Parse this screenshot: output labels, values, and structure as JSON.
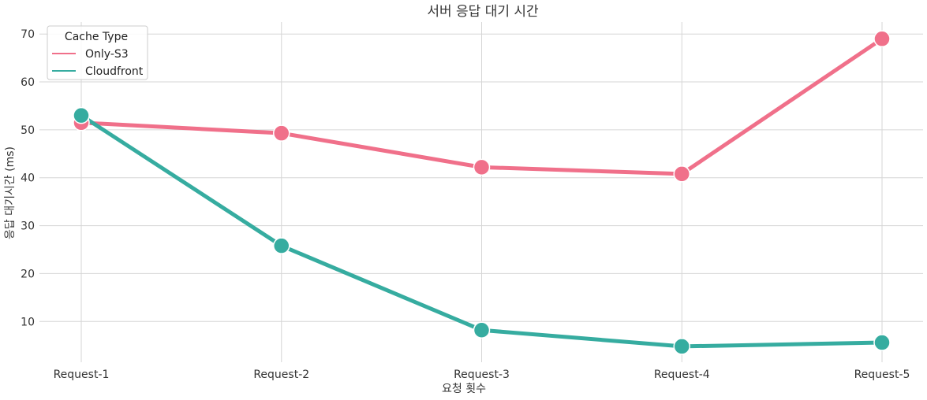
{
  "chart_data": {
    "type": "line",
    "title": "서버 응답 대기 시간",
    "xlabel": "요청 횟수",
    "ylabel": "응답 대기시간 (ms)",
    "categories": [
      "Request-1",
      "Request-2",
      "Request-3",
      "Request-4",
      "Request-5"
    ],
    "y_ticks": [
      10,
      20,
      30,
      40,
      50,
      60,
      70
    ],
    "ylim": [
      1.5,
      72.5
    ],
    "grid": true,
    "legend": {
      "title": "Cache Type",
      "placement": "top-left"
    },
    "series": [
      {
        "name": "Only-S3",
        "color": "#f0708a",
        "values": [
          51.5,
          49.3,
          42.2,
          40.8,
          69.0
        ]
      },
      {
        "name": "Cloudfront",
        "color": "#36aca0",
        "values": [
          53.0,
          25.8,
          8.2,
          4.8,
          5.6
        ]
      }
    ]
  }
}
